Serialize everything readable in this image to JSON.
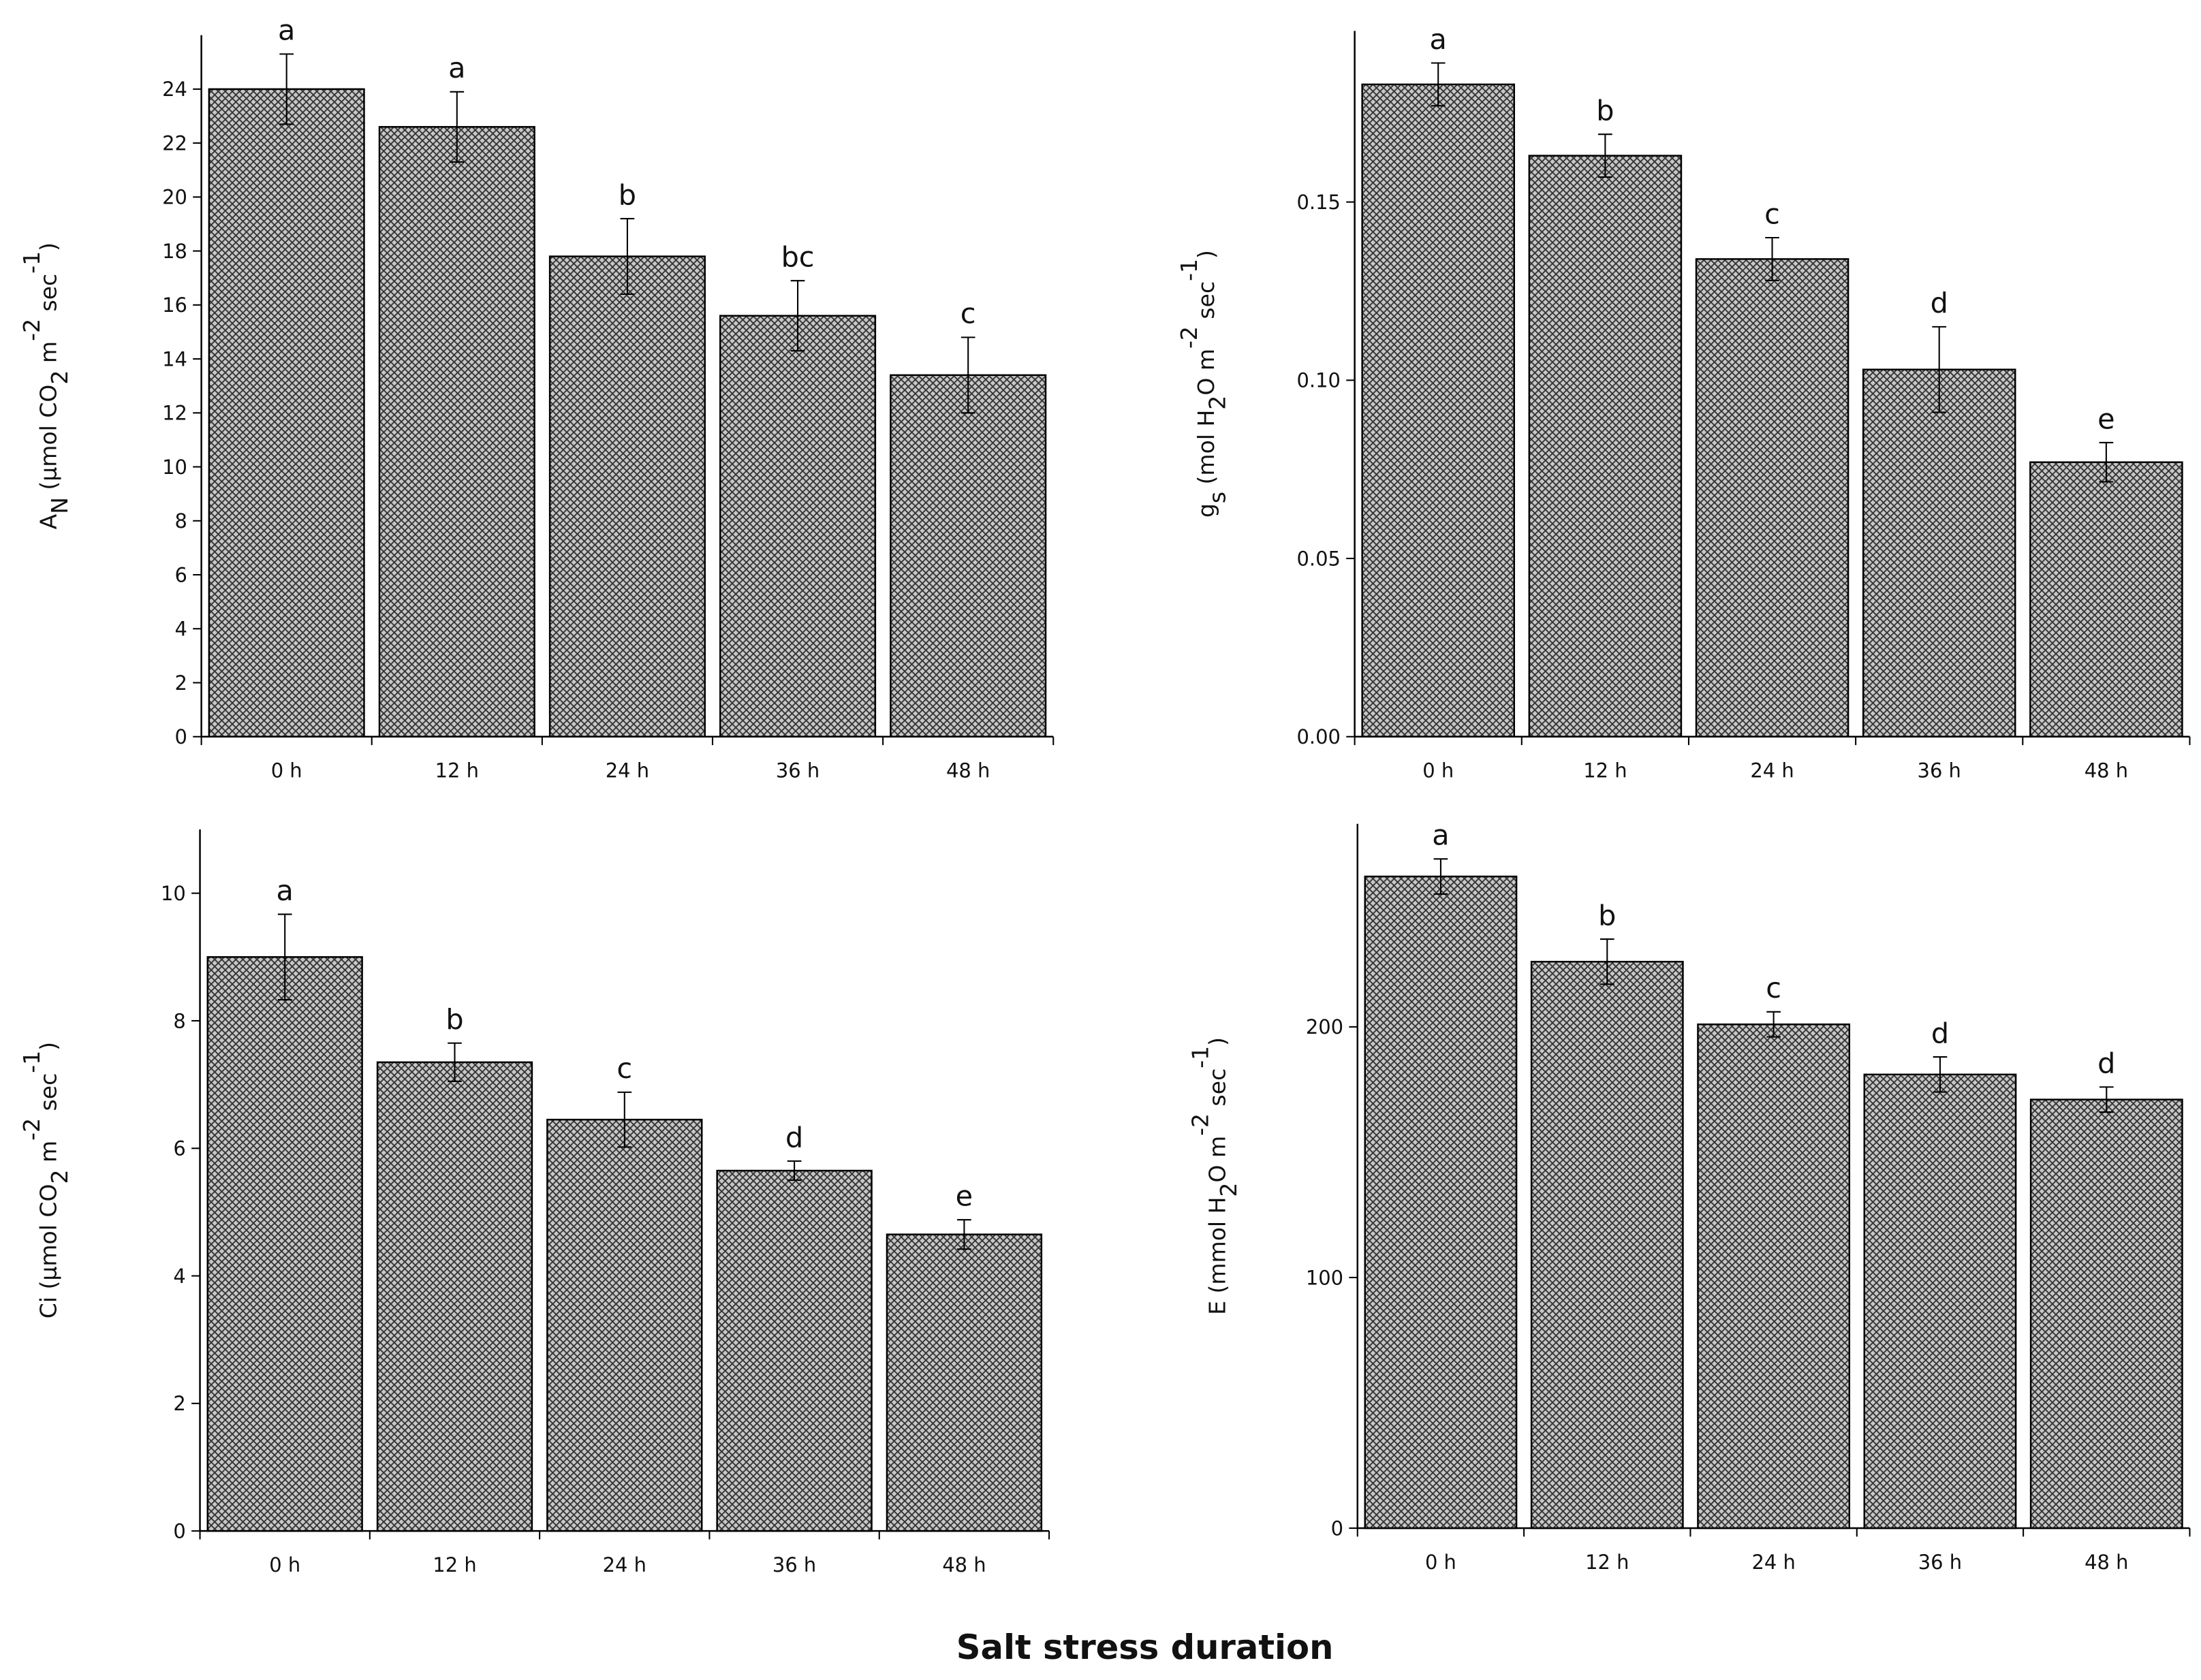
{
  "xlabel": "Salt stress duration",
  "chart_data": [
    {
      "type": "bar",
      "ylabel": [
        {
          "text": "A"
        },
        {
          "text": "N",
          "script": "sub"
        },
        {
          "text": " (µmol CO"
        },
        {
          "text": "2",
          "script": "sub"
        },
        {
          "text": " m"
        },
        {
          "text": "-2",
          "script": "sup"
        },
        {
          "text": " sec"
        },
        {
          "text": "-1",
          "script": "sup"
        },
        {
          "text": ")"
        }
      ],
      "categories": [
        "0 h",
        "12 h",
        "24 h",
        "36 h",
        "48 h"
      ],
      "values": [
        24.0,
        22.6,
        17.8,
        15.6,
        13.4
      ],
      "errors": [
        1.3,
        1.3,
        1.4,
        1.3,
        1.4
      ],
      "letters": [
        "a",
        "a",
        "b",
        "bc",
        "c"
      ],
      "ylim": [
        0,
        26
      ],
      "yticks": [
        0,
        2,
        4,
        6,
        8,
        10,
        12,
        14,
        16,
        18,
        20,
        22,
        24
      ]
    },
    {
      "type": "bar",
      "ylabel": [
        {
          "text": "g"
        },
        {
          "text": "s",
          "script": "sub"
        },
        {
          "text": " (mol H"
        },
        {
          "text": "2",
          "script": "sub"
        },
        {
          "text": "O m"
        },
        {
          "text": "-2",
          "script": "sup"
        },
        {
          "text": " sec"
        },
        {
          "text": "-1",
          "script": "sup"
        },
        {
          "text": ")"
        }
      ],
      "categories": [
        "0 h",
        "12 h",
        "24 h",
        "36 h",
        "48 h"
      ],
      "values": [
        0.183,
        0.163,
        0.134,
        0.103,
        0.077
      ],
      "errors": [
        0.006,
        0.006,
        0.006,
        0.012,
        0.0055
      ],
      "letters": [
        "a",
        "b",
        "c",
        "d",
        "e"
      ],
      "ylim": [
        0,
        0.198
      ],
      "yticks": [
        {
          "value": 0,
          "label": "0.00"
        },
        {
          "value": 0.05,
          "label": "0.05"
        },
        {
          "value": 0.1,
          "label": "0.10"
        },
        {
          "value": 0.15,
          "label": "0.15"
        }
      ]
    },
    {
      "type": "bar",
      "ylabel": [
        {
          "text": "Ci (µmol CO"
        },
        {
          "text": "2",
          "script": "sub"
        },
        {
          "text": " m"
        },
        {
          "text": "-2",
          "script": "sup"
        },
        {
          "text": " sec"
        },
        {
          "text": "-1",
          "script": "sup"
        },
        {
          "text": ")"
        }
      ],
      "categories": [
        "0 h",
        "12 h",
        "24 h",
        "36 h",
        "48 h"
      ],
      "values": [
        9.0,
        7.35,
        6.45,
        5.65,
        4.65
      ],
      "errors": [
        0.67,
        0.3,
        0.43,
        0.15,
        0.23
      ],
      "letters": [
        "a",
        "b",
        "c",
        "d",
        "e"
      ],
      "ylim": [
        0,
        11
      ],
      "yticks": [
        0,
        2,
        4,
        6,
        8,
        10
      ]
    },
    {
      "type": "bar",
      "ylabel": [
        {
          "text": "E (mmol H"
        },
        {
          "text": "2",
          "script": "sub"
        },
        {
          "text": "O m"
        },
        {
          "text": "-2",
          "script": "sup"
        },
        {
          "text": " sec"
        },
        {
          "text": "-1",
          "script": "sup"
        },
        {
          "text": ")"
        }
      ],
      "categories": [
        "0 h",
        "12 h",
        "24 h",
        "36 h",
        "48 h"
      ],
      "values": [
        260,
        226,
        201,
        181,
        171
      ],
      "errors": [
        7,
        9,
        5,
        7,
        5
      ],
      "letters": [
        "a",
        "b",
        "c",
        "d",
        "d"
      ],
      "ylim": [
        0,
        281
      ],
      "yticks": [
        0,
        100,
        200
      ]
    }
  ]
}
